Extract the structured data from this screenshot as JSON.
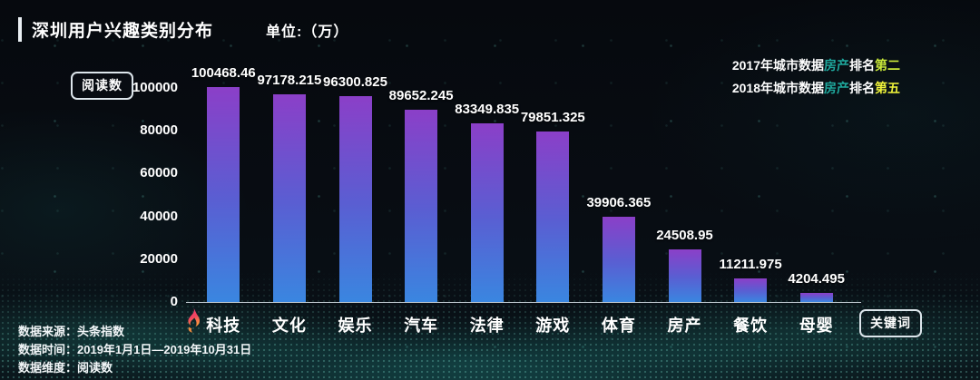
{
  "title": {
    "text": "深圳用户兴趣类别分布",
    "unit": "单位:（万）"
  },
  "annotations": [
    {
      "prefix": "2017年城市数据",
      "highlight": "房产",
      "middle": "排名",
      "rank": "第二",
      "highlight_color": "#1fa89d",
      "rank_color": "#c9e83a"
    },
    {
      "prefix": "2018年城市数据",
      "highlight": "房产",
      "middle": "排名",
      "rank": "第五",
      "highlight_color": "#1fa89d",
      "rank_color": "#eef23a"
    }
  ],
  "y_axis_badge": "阅读数",
  "keyword_badge": "关键词",
  "footer": {
    "rows": [
      {
        "label": "数据来源：",
        "value": "头条指数"
      },
      {
        "label": "数据时间：",
        "value": "2019年1月1日—2019年10月31日"
      },
      {
        "label": "数据维度：",
        "value": "阅读数"
      }
    ]
  },
  "chart_data": {
    "type": "bar",
    "title": "深圳用户兴趣类别分布",
    "xlabel": "",
    "ylabel": "阅读数",
    "unit": "万",
    "categories": [
      "科技",
      "文化",
      "娱乐",
      "汽车",
      "法律",
      "游戏",
      "体育",
      "房产",
      "餐饮",
      "母婴"
    ],
    "values": [
      100468.46,
      97178.215,
      96300.825,
      89652.245,
      83349.835,
      79851.325,
      39906.365,
      24508.95,
      11211.975,
      4204.495
    ],
    "value_labels": [
      "100468.46",
      "97178.215",
      "96300.825",
      "89652.245",
      "83349.835",
      "79851.325",
      "39906.365",
      "24508.95",
      "11211.975",
      "4204.495"
    ],
    "y_ticks": [
      100000,
      80000,
      60000,
      40000,
      20000,
      0
    ],
    "ylim": [
      0,
      100000
    ],
    "grid": false,
    "legend": "none",
    "hot_category_index": 0,
    "bar_color_top": "#8b3fc8",
    "bar_color_bottom": "#3a86e0"
  }
}
